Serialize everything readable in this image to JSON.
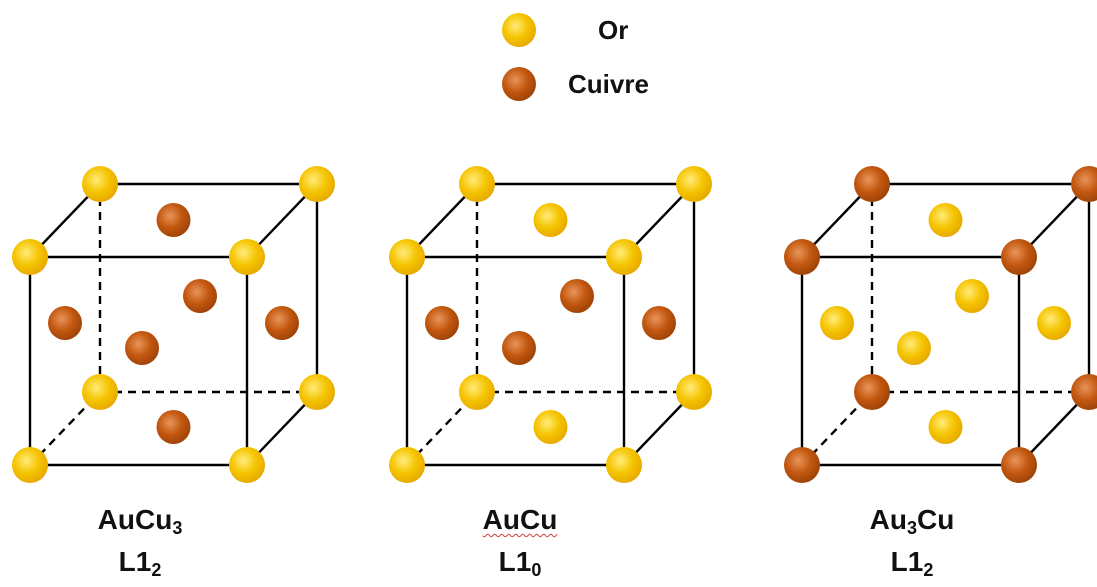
{
  "legend": {
    "gold_label": "Or",
    "copper_label": "Cuivre"
  },
  "colors": {
    "gold": "#f5c400",
    "gold_highlight": "#ffec7a",
    "copper": "#c2570f",
    "copper_highlight": "#e8955a",
    "edge": "#000000"
  },
  "structures": [
    {
      "formula_a": "AuCu",
      "formula_a_sub": "3",
      "formula_b": "",
      "phase": "L1",
      "phase_sub": "2",
      "corner_atom": "gold",
      "face_atom": "copper"
    },
    {
      "formula_a": "AuCu",
      "formula_a_sub": "",
      "formula_b": "",
      "phase": "L1",
      "phase_sub": "0",
      "corner_atom": "gold",
      "face_atom": "mixed"
    },
    {
      "formula_a": "Au",
      "formula_a_sub": "3",
      "formula_b": "Cu",
      "phase": "L1",
      "phase_sub": "2",
      "corner_atom": "copper",
      "face_atom": "gold"
    }
  ]
}
